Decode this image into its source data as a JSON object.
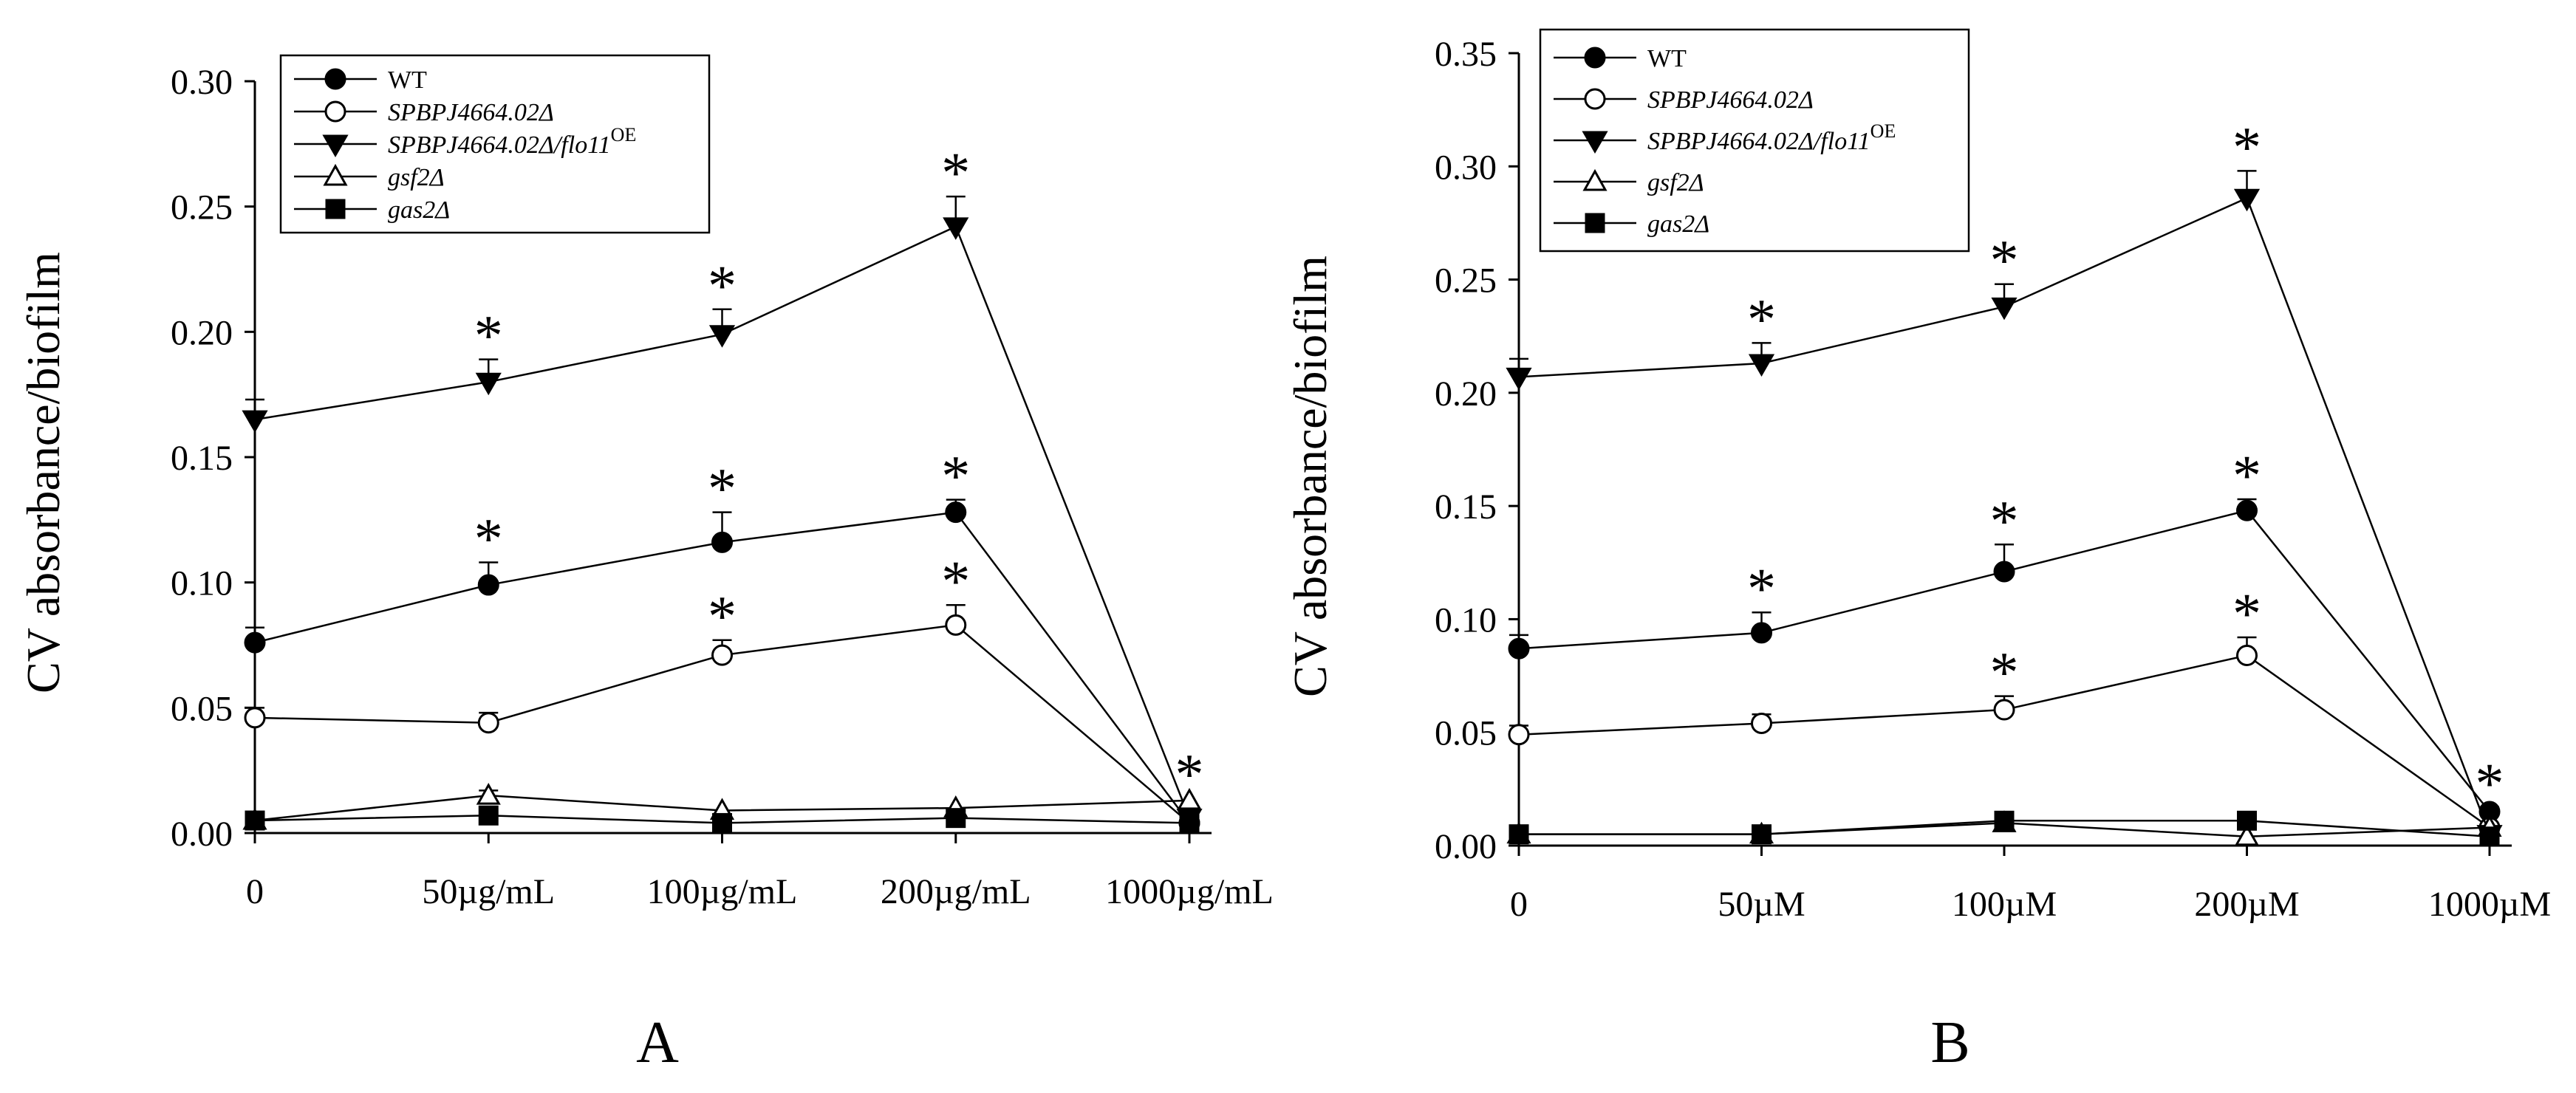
{
  "panels": [
    "A",
    "B"
  ],
  "chart_data": [
    {
      "type": "line",
      "panel": "A",
      "title": "",
      "xlabel": "",
      "ylabel": "CV absorbance/biofilm",
      "categories": [
        "0",
        "50µg/mL",
        "100µg/mL",
        "200µg/mL",
        "1000µg/mL"
      ],
      "ylim": [
        0,
        0.3
      ],
      "yticks": [
        "0.00",
        "0.05",
        "0.10",
        "0.15",
        "0.20",
        "0.25",
        "0.30"
      ],
      "legend_position": "top-left",
      "series": [
        {
          "name": "WT",
          "marker": "circle-filled",
          "values": [
            0.076,
            0.099,
            0.116,
            0.128,
            0.004
          ],
          "errors": [
            0.006,
            0.009,
            0.012,
            0.005,
            0.001
          ],
          "significant": [
            false,
            true,
            true,
            true,
            false
          ]
        },
        {
          "name": "SPBPJ4664.02Δ",
          "marker": "circle-open",
          "values": [
            0.046,
            0.044,
            0.071,
            0.083,
            0.004
          ],
          "errors": [
            0.004,
            0.004,
            0.006,
            0.008,
            0.001
          ],
          "significant": [
            false,
            false,
            true,
            true,
            false
          ]
        },
        {
          "name": "SPBPJ4664.02Δ/flo11OE",
          "marker": "triangle-down-filled",
          "values": [
            0.165,
            0.18,
            0.199,
            0.242,
            0.006
          ],
          "errors": [
            0.008,
            0.009,
            0.01,
            0.012,
            0.001
          ],
          "significant": [
            false,
            true,
            true,
            true,
            false
          ]
        },
        {
          "name": "gsf2Δ",
          "marker": "triangle-up-open",
          "values": [
            0.005,
            0.015,
            0.009,
            0.01,
            0.013
          ],
          "errors": [
            0.001,
            0.002,
            0.001,
            0.001,
            0.001
          ],
          "significant": [
            false,
            false,
            false,
            false,
            true
          ]
        },
        {
          "name": "gas2Δ",
          "marker": "square-filled",
          "values": [
            0.005,
            0.007,
            0.004,
            0.006,
            0.004
          ],
          "errors": [
            0.001,
            0.001,
            0.001,
            0.001,
            0.001
          ],
          "significant": [
            false,
            false,
            false,
            false,
            false
          ]
        }
      ]
    },
    {
      "type": "line",
      "panel": "B",
      "title": "",
      "xlabel": "",
      "ylabel": "CV absorbance/biofilm",
      "categories": [
        "0",
        "50µM",
        "100µM",
        "200µM",
        "1000µM"
      ],
      "ylim": [
        0,
        0.35
      ],
      "yticks": [
        "0.00",
        "0.05",
        "0.10",
        "0.15",
        "0.20",
        "0.25",
        "0.30",
        "0.35"
      ],
      "legend_position": "top-left",
      "series": [
        {
          "name": "WT",
          "marker": "circle-filled",
          "values": [
            0.087,
            0.094,
            0.121,
            0.148,
            0.015
          ],
          "errors": [
            0.006,
            0.009,
            0.012,
            0.005,
            0.002
          ],
          "significant": [
            false,
            true,
            true,
            true,
            true
          ]
        },
        {
          "name": "SPBPJ4664.02Δ",
          "marker": "circle-open",
          "values": [
            0.049,
            0.054,
            0.06,
            0.084,
            0.008
          ],
          "errors": [
            0.004,
            0.004,
            0.006,
            0.008,
            0.001
          ],
          "significant": [
            false,
            false,
            true,
            true,
            false
          ]
        },
        {
          "name": "SPBPJ4664.02Δ/flo11OE",
          "marker": "triangle-down-filled",
          "values": [
            0.207,
            0.213,
            0.238,
            0.286,
            0.005
          ],
          "errors": [
            0.008,
            0.009,
            0.01,
            0.012,
            0.001
          ],
          "significant": [
            false,
            true,
            true,
            true,
            false
          ]
        },
        {
          "name": "gsf2Δ",
          "marker": "triangle-up-open",
          "values": [
            0.005,
            0.005,
            0.01,
            0.004,
            0.008
          ],
          "errors": [
            0.001,
            0.001,
            0.001,
            0.001,
            0.001
          ],
          "significant": [
            false,
            false,
            false,
            false,
            false
          ]
        },
        {
          "name": "gas2Δ",
          "marker": "square-filled",
          "values": [
            0.005,
            0.005,
            0.011,
            0.011,
            0.004
          ],
          "errors": [
            0.001,
            0.001,
            0.001,
            0.001,
            0.001
          ],
          "significant": [
            false,
            false,
            false,
            false,
            false
          ]
        }
      ]
    }
  ]
}
